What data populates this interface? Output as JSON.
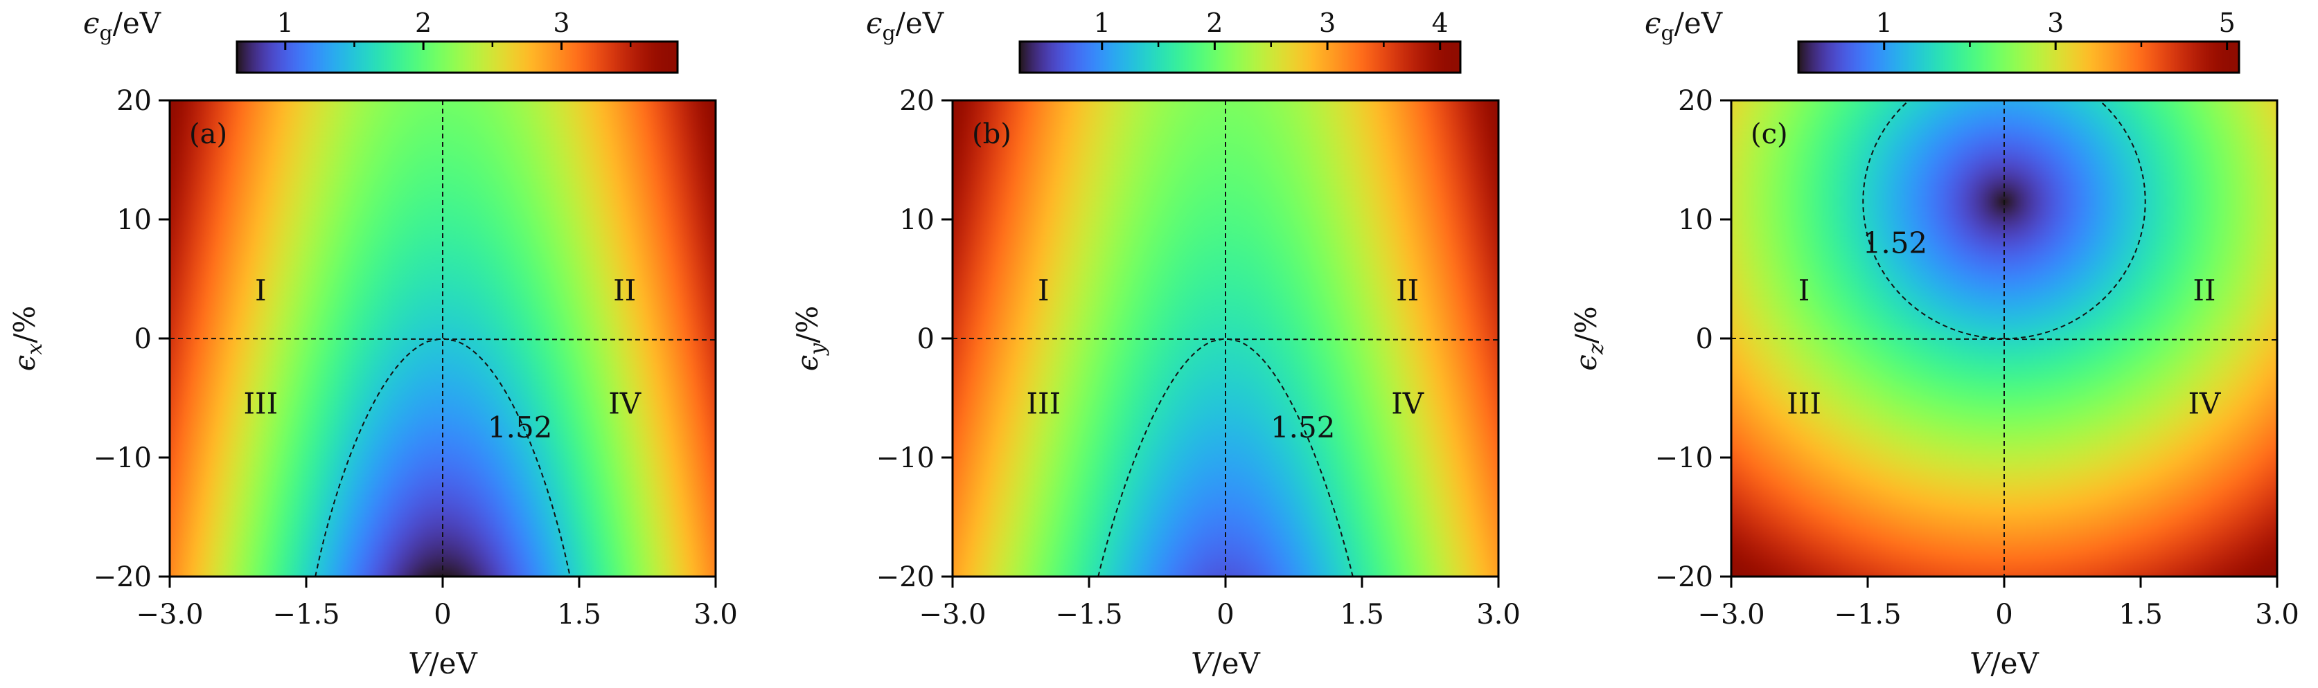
{
  "chart_data": [
    {
      "type": "heatmap",
      "panel_label": "(a)",
      "xlabel": {
        "symbol": "V",
        "unit": "/eV"
      },
      "ylabel": {
        "symbol": "ϵ",
        "sub": "x",
        "unit": "/%"
      },
      "xlim": [
        -3.0,
        3.0
      ],
      "ylim": [
        -20,
        20
      ],
      "xticks": [
        "−3.0",
        "−1.5",
        "0",
        "1.5",
        "3.0"
      ],
      "xtick_values": [
        -3.0,
        -1.5,
        0,
        1.5,
        3.0
      ],
      "yticks": [
        "−20",
        "−10",
        "0",
        "10",
        "20"
      ],
      "ytick_values": [
        -20,
        -10,
        0,
        10,
        20
      ],
      "colorbar": {
        "label": {
          "symbol": "ϵ",
          "sub": "g",
          "unit": "/eV"
        },
        "range": [
          0.65,
          3.84
        ],
        "ticks": [
          "1",
          "2",
          "3"
        ],
        "tick_values": [
          1,
          2,
          3
        ],
        "minor_ticks": [
          1.5,
          2.5,
          3.5
        ],
        "colormap": "turbo"
      },
      "contour": {
        "value": 1.52,
        "label": "1.52",
        "label_at": [
          0.85,
          -7.5
        ]
      },
      "regions": [
        {
          "label": "I",
          "at": [
            -2.0,
            4
          ]
        },
        {
          "label": "II",
          "at": [
            2.0,
            4
          ]
        },
        {
          "label": "III",
          "at": [
            -2.0,
            -5.5
          ]
        },
        {
          "label": "IV",
          "at": [
            2.0,
            -5.5
          ]
        }
      ],
      "reference_lines": {
        "V": 0,
        "strain": 0,
        "style": "dashed"
      },
      "minimum": {
        "V": 0,
        "strain": -20,
        "value": 0.65
      }
    },
    {
      "type": "heatmap",
      "panel_label": "(b)",
      "xlabel": {
        "symbol": "V",
        "unit": "/eV"
      },
      "ylabel": {
        "symbol": "ϵ",
        "sub": "y",
        "unit": "/%"
      },
      "xlim": [
        -3.0,
        3.0
      ],
      "ylim": [
        -20,
        20
      ],
      "xticks": [
        "−3.0",
        "−1.5",
        "0",
        "1.5",
        "3.0"
      ],
      "xtick_values": [
        -3.0,
        -1.5,
        0,
        1.5,
        3.0
      ],
      "yticks": [
        "−20",
        "−10",
        "0",
        "10",
        "20"
      ],
      "ytick_values": [
        -20,
        -10,
        0,
        10,
        20
      ],
      "colorbar": {
        "label": {
          "symbol": "ϵ",
          "sub": "g",
          "unit": "/eV"
        },
        "range": [
          0.27,
          4.18
        ],
        "ticks": [
          "1",
          "2",
          "3",
          "4"
        ],
        "tick_values": [
          1,
          2,
          3,
          4
        ],
        "minor_ticks": [
          1.5,
          2.5,
          3.5
        ],
        "colormap": "turbo"
      },
      "contour": {
        "value": 1.52,
        "label": "1.52",
        "label_at": [
          0.85,
          -7.5
        ]
      },
      "regions": [
        {
          "label": "I",
          "at": [
            -2.0,
            4
          ]
        },
        {
          "label": "II",
          "at": [
            2.0,
            4
          ]
        },
        {
          "label": "III",
          "at": [
            -2.0,
            -5.5
          ]
        },
        {
          "label": "IV",
          "at": [
            2.0,
            -5.5
          ]
        }
      ],
      "reference_lines": {
        "V": 0,
        "strain": 0,
        "style": "dashed"
      },
      "minimum": {
        "V": 0,
        "strain": -20,
        "value": 0.3
      }
    },
    {
      "type": "heatmap",
      "panel_label": "(c)",
      "xlabel": {
        "symbol": "V",
        "unit": "/eV"
      },
      "ylabel": {
        "symbol": "ϵ",
        "sub": "z",
        "unit": "/%"
      },
      "xlim": [
        -3.0,
        3.0
      ],
      "ylim": [
        -20,
        20
      ],
      "xticks": [
        "−3.0",
        "−1.5",
        "0",
        "1.5",
        "3.0"
      ],
      "xtick_values": [
        -3.0,
        -1.5,
        0,
        1.5,
        3.0
      ],
      "yticks": [
        "−20",
        "−10",
        "0",
        "10",
        "20"
      ],
      "ytick_values": [
        -20,
        -10,
        0,
        10,
        20
      ],
      "colorbar": {
        "label": {
          "symbol": "ϵ",
          "sub": "g",
          "unit": "/eV"
        },
        "range": [
          0.0,
          5.14
        ],
        "ticks": [
          "1",
          "3",
          "5"
        ],
        "tick_values": [
          1,
          3,
          5
        ],
        "minor_ticks": [
          2,
          4
        ],
        "colormap": "turbo"
      },
      "contour": {
        "value": 1.52,
        "label": "1.52",
        "label_at": [
          -1.2,
          8
        ]
      },
      "regions": [
        {
          "label": "I",
          "at": [
            -2.2,
            4
          ]
        },
        {
          "label": "II",
          "at": [
            2.2,
            4
          ]
        },
        {
          "label": "III",
          "at": [
            -2.2,
            -5.5
          ]
        },
        {
          "label": "IV",
          "at": [
            2.2,
            -5.5
          ]
        }
      ],
      "reference_lines": {
        "V": 0,
        "strain": 0,
        "style": "dashed"
      },
      "minimum": {
        "V": 0,
        "strain": 11.5,
        "value": 0.0
      }
    }
  ]
}
